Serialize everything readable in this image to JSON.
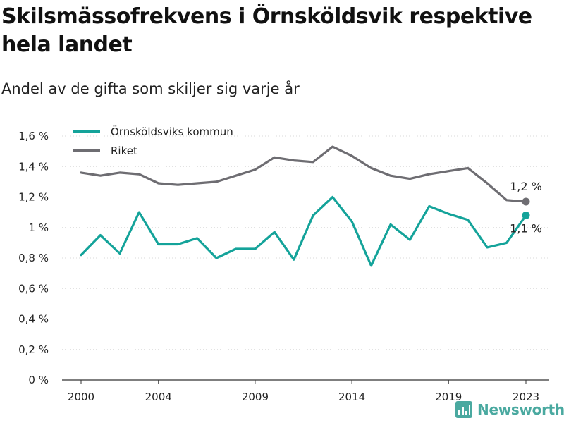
{
  "title": "Skilsmässofrekvens i Örnsköldsvik respektive hela landet",
  "subtitle": "Andel av de gifta som skiljer sig varje år",
  "brand": {
    "name": "Newsworthy"
  },
  "colors": {
    "ornskoldsvik": "#14a39a",
    "riket": "#6e6d72",
    "grid": "#d9d9d9",
    "brand": "#4aa9a0"
  },
  "chart_data": {
    "type": "line",
    "x": [
      2000,
      2001,
      2002,
      2003,
      2004,
      2005,
      2006,
      2007,
      2008,
      2009,
      2010,
      2011,
      2012,
      2013,
      2014,
      2015,
      2016,
      2017,
      2018,
      2019,
      2020,
      2021,
      2022,
      2023
    ],
    "series": [
      {
        "name": "Örnsköldsviks kommun",
        "color": "#14a39a",
        "values": [
          0.82,
          0.95,
          0.83,
          1.1,
          0.89,
          0.89,
          0.93,
          0.8,
          0.86,
          0.86,
          0.97,
          0.79,
          1.08,
          1.2,
          1.04,
          0.75,
          1.02,
          0.92,
          1.14,
          1.09,
          1.05,
          0.87,
          0.9,
          1.08
        ],
        "end_label": "1,1 %"
      },
      {
        "name": "Riket",
        "color": "#6e6d72",
        "values": [
          1.36,
          1.34,
          1.36,
          1.35,
          1.29,
          1.28,
          1.29,
          1.3,
          1.34,
          1.38,
          1.46,
          1.44,
          1.43,
          1.53,
          1.47,
          1.39,
          1.34,
          1.32,
          1.35,
          1.37,
          1.39,
          1.29,
          1.18,
          1.17
        ],
        "end_label": "1,2 %"
      }
    ],
    "y_ticks": [
      "0 %",
      "0,2 %",
      "0,4 %",
      "0,6 %",
      "0,8 %",
      "1 %",
      "1,2 %",
      "1,4 %",
      "1,6 %"
    ],
    "y_tick_values": [
      0,
      0.2,
      0.4,
      0.6,
      0.8,
      1.0,
      1.2,
      1.4,
      1.6
    ],
    "x_ticks": [
      2000,
      2004,
      2009,
      2014,
      2019,
      2023
    ],
    "ylim": [
      0,
      1.6
    ],
    "xlim": [
      2000,
      2023
    ],
    "legend_position": "top-left",
    "grid": "horizontal-dotted"
  }
}
